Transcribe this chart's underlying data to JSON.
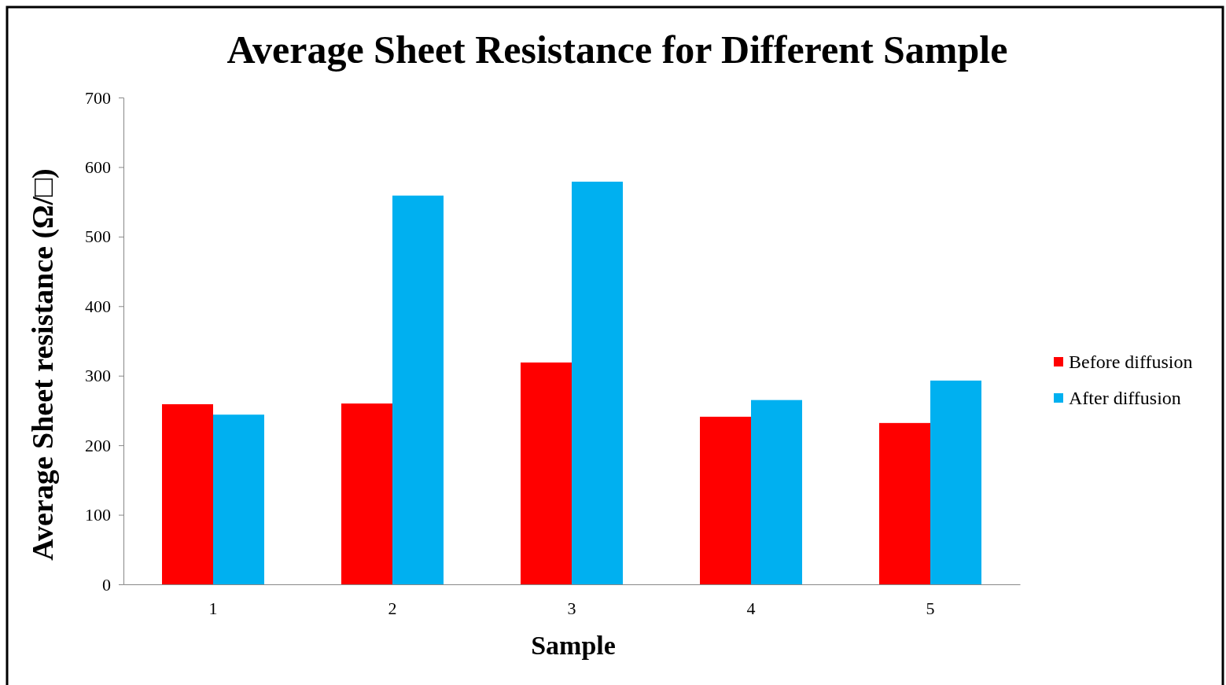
{
  "chart_data": {
    "type": "bar",
    "title": "Average Sheet Resistance  for Different Sample",
    "xlabel": "Sample",
    "ylabel": "Average Sheet resistance (Ω/□)",
    "categories": [
      "1",
      "2",
      "3",
      "4",
      "5"
    ],
    "series": [
      {
        "name": "Before diffusion",
        "color": "#ff0000",
        "values": [
          259,
          260,
          319,
          241,
          232
        ]
      },
      {
        "name": "After diffusion",
        "color": "#00b0f0",
        "values": [
          244,
          559,
          579,
          265,
          293
        ]
      }
    ],
    "ylim": [
      0,
      700
    ],
    "yticks": [
      0,
      100,
      200,
      300,
      400,
      500,
      600,
      700
    ],
    "grid": false,
    "legend": "right"
  }
}
